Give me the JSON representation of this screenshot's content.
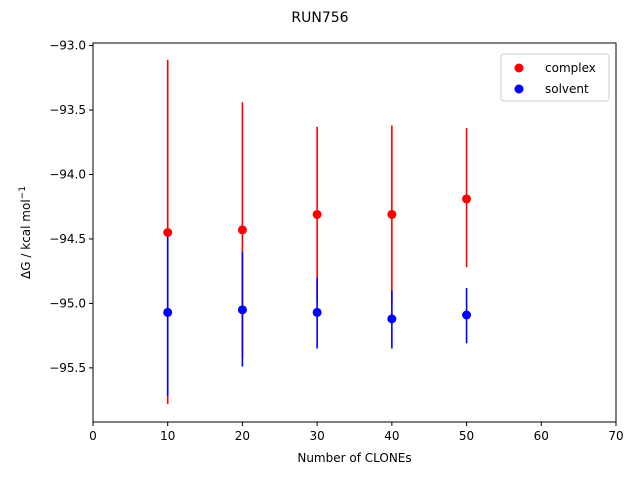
{
  "chart_data": {
    "type": "scatter",
    "title": "RUN756",
    "xlabel": "Number of CLONEs",
    "ylabel_main": "ΔG / kcal mol",
    "ylabel_sup": "−1",
    "xlim": [
      0,
      70
    ],
    "ylim": [
      -95.92,
      -92.98
    ],
    "xticks": [
      0,
      10,
      20,
      30,
      40,
      50,
      60,
      70
    ],
    "xtick_labels": [
      "0",
      "10",
      "20",
      "30",
      "40",
      "50",
      "60",
      "70"
    ],
    "yticks": [
      -93.0,
      -93.5,
      -94.0,
      -94.5,
      -95.0,
      -95.5
    ],
    "ytick_labels": [
      "−93.0",
      "−93.5",
      "−94.0",
      "−94.5",
      "−95.0",
      "−95.5"
    ],
    "grid": false,
    "legend_position": "top-right",
    "series": [
      {
        "name": "complex",
        "color": "#ff0000",
        "x": [
          10,
          20,
          30,
          40,
          50
        ],
        "y": [
          -94.45,
          -94.43,
          -94.31,
          -94.31,
          -94.19
        ],
        "err_low": [
          -95.78,
          -95.42,
          -94.99,
          -94.99,
          -94.72
        ],
        "err_high": [
          -93.11,
          -93.44,
          -93.63,
          -93.62,
          -93.64
        ]
      },
      {
        "name": "solvent",
        "color": "#0000ff",
        "x": [
          10,
          20,
          30,
          40,
          50
        ],
        "y": [
          -95.07,
          -95.05,
          -95.07,
          -95.12,
          -95.09
        ],
        "err_low": [
          -95.72,
          -95.49,
          -95.35,
          -95.35,
          -95.31
        ],
        "err_high": [
          -94.44,
          -94.6,
          -94.8,
          -94.9,
          -94.88
        ]
      }
    ]
  }
}
